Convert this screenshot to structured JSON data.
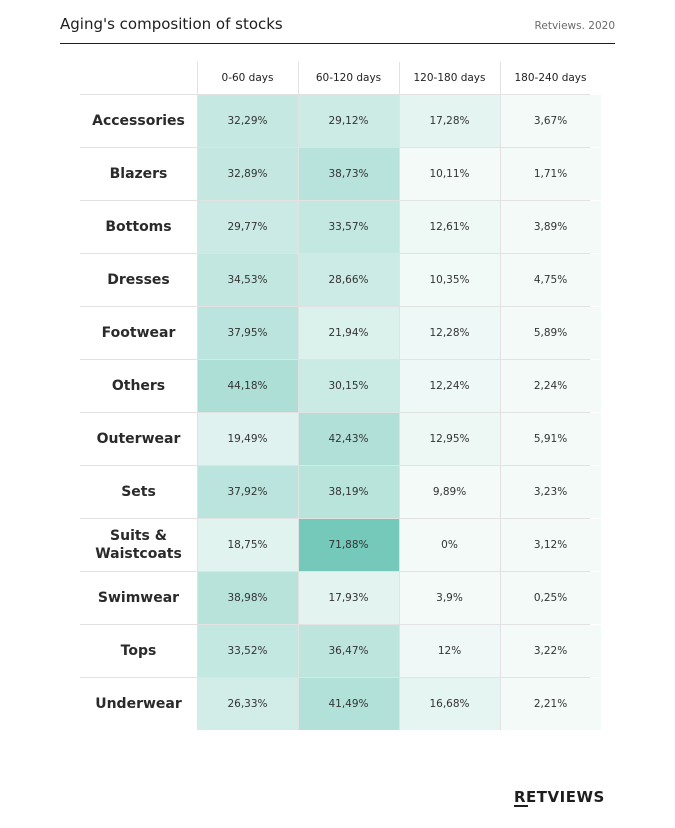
{
  "header": {
    "title": "Aging's composition of stocks",
    "source": "Retviews. 2020"
  },
  "logo": "RETVIEWS",
  "colors": {
    "cell_low": "#f3faf8",
    "cell_high": "#74c9bb",
    "grid_line": "#e2e2e2"
  },
  "chart_data": {
    "type": "heatmap",
    "title": "Aging's composition of stocks",
    "columns": [
      "0-60 days",
      "60-120 days",
      "120-180 days",
      "180-240 days"
    ],
    "rows": [
      {
        "label": "Accessories",
        "display": [
          "32,29%",
          "29,12%",
          "17,28%",
          "3,67%"
        ],
        "values": [
          32.29,
          29.12,
          17.28,
          3.67
        ]
      },
      {
        "label": "Blazers",
        "display": [
          "32,89%",
          "38,73%",
          "10,11%",
          "1,71%"
        ],
        "values": [
          32.89,
          38.73,
          10.11,
          1.71
        ]
      },
      {
        "label": "Bottoms",
        "display": [
          "29,77%",
          "33,57%",
          "12,61%",
          "3,89%"
        ],
        "values": [
          29.77,
          33.57,
          12.61,
          3.89
        ]
      },
      {
        "label": "Dresses",
        "display": [
          "34,53%",
          "28,66%",
          "10,35%",
          "4,75%"
        ],
        "values": [
          34.53,
          28.66,
          10.35,
          4.75
        ]
      },
      {
        "label": "Footwear",
        "display": [
          "37,95%",
          "21,94%",
          "12,28%",
          "5,89%"
        ],
        "values": [
          37.95,
          21.94,
          12.28,
          5.89
        ]
      },
      {
        "label": "Others",
        "display": [
          "44,18%",
          "30,15%",
          "12,24%",
          "2,24%"
        ],
        "values": [
          44.18,
          30.15,
          12.24,
          2.24
        ]
      },
      {
        "label": "Outerwear",
        "display": [
          "19,49%",
          "42,43%",
          "12,95%",
          "5,91%"
        ],
        "values": [
          19.49,
          42.43,
          12.95,
          5.91
        ]
      },
      {
        "label": "Sets",
        "display": [
          "37,92%",
          "38,19%",
          "9,89%",
          "3,23%"
        ],
        "values": [
          37.92,
          38.19,
          9.89,
          3.23
        ]
      },
      {
        "label": "Suits & Waistcoats",
        "display": [
          "18,75%",
          "71,88%",
          "0%",
          "3,12%"
        ],
        "values": [
          18.75,
          71.88,
          0,
          3.12
        ]
      },
      {
        "label": "Swimwear",
        "display": [
          "38,98%",
          "17,93%",
          "3,9%",
          "0,25%"
        ],
        "values": [
          38.98,
          17.93,
          3.9,
          0.25
        ]
      },
      {
        "label": "Tops",
        "display": [
          "33,52%",
          "36,47%",
          "12%",
          "3,22%"
        ],
        "values": [
          33.52,
          36.47,
          12,
          3.22
        ]
      },
      {
        "label": "Underwear",
        "display": [
          "26,33%",
          "41,49%",
          "16,68%",
          "2,21%"
        ],
        "values": [
          26.33,
          41.49,
          16.68,
          2.21
        ]
      }
    ]
  }
}
